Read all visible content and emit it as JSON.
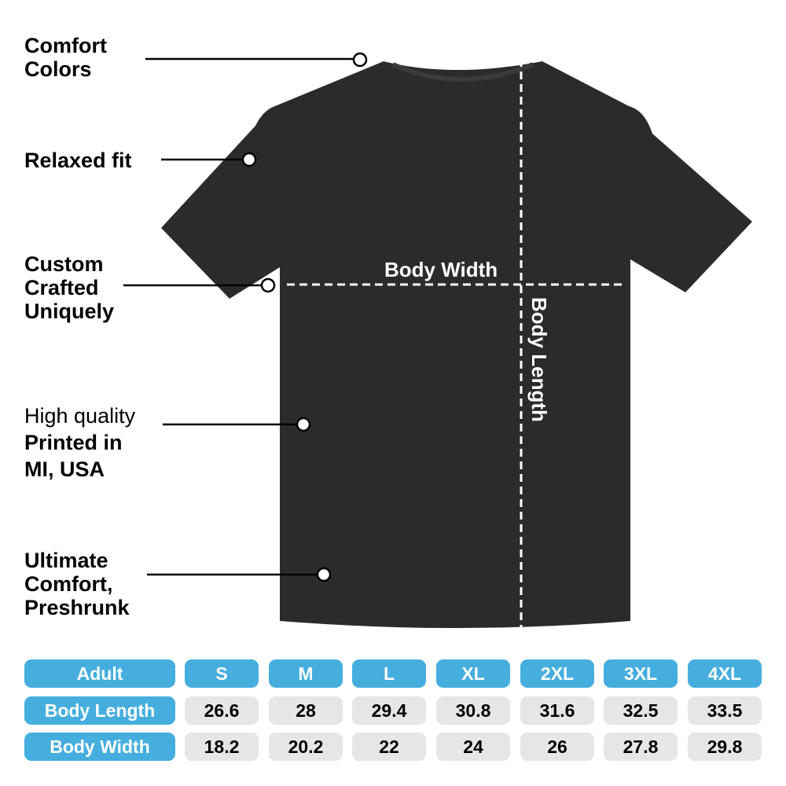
{
  "callouts": [
    {
      "lines": [
        "Comfort",
        "Colors"
      ]
    },
    {
      "lines": [
        "Relaxed fit"
      ]
    },
    {
      "lines": [
        "Custom",
        "Crafted",
        "Uniquely"
      ]
    },
    {
      "prefix": "High quality",
      "lines": [
        "Printed in",
        "MI, USA"
      ]
    },
    {
      "lines": [
        "Ultimate",
        "Comfort,",
        "Preshrunk"
      ]
    }
  ],
  "measurements": {
    "width_label": "Body Width",
    "length_label": "Body Length"
  },
  "colors": {
    "header": "#45aede",
    "cell": "#e6e6e8",
    "shirt": "#2b2b2b"
  },
  "table": {
    "header": [
      "Adult",
      "S",
      "M",
      "L",
      "XL",
      "2XL",
      "3XL",
      "4XL"
    ],
    "rows": [
      {
        "label": "Body Length",
        "values": [
          "26.6",
          "28",
          "29.4",
          "30.8",
          "31.6",
          "32.5",
          "33.5"
        ]
      },
      {
        "label": "Body Width",
        "values": [
          "18.2",
          "20.2",
          "22",
          "24",
          "26",
          "27.8",
          "29.8"
        ]
      }
    ]
  }
}
